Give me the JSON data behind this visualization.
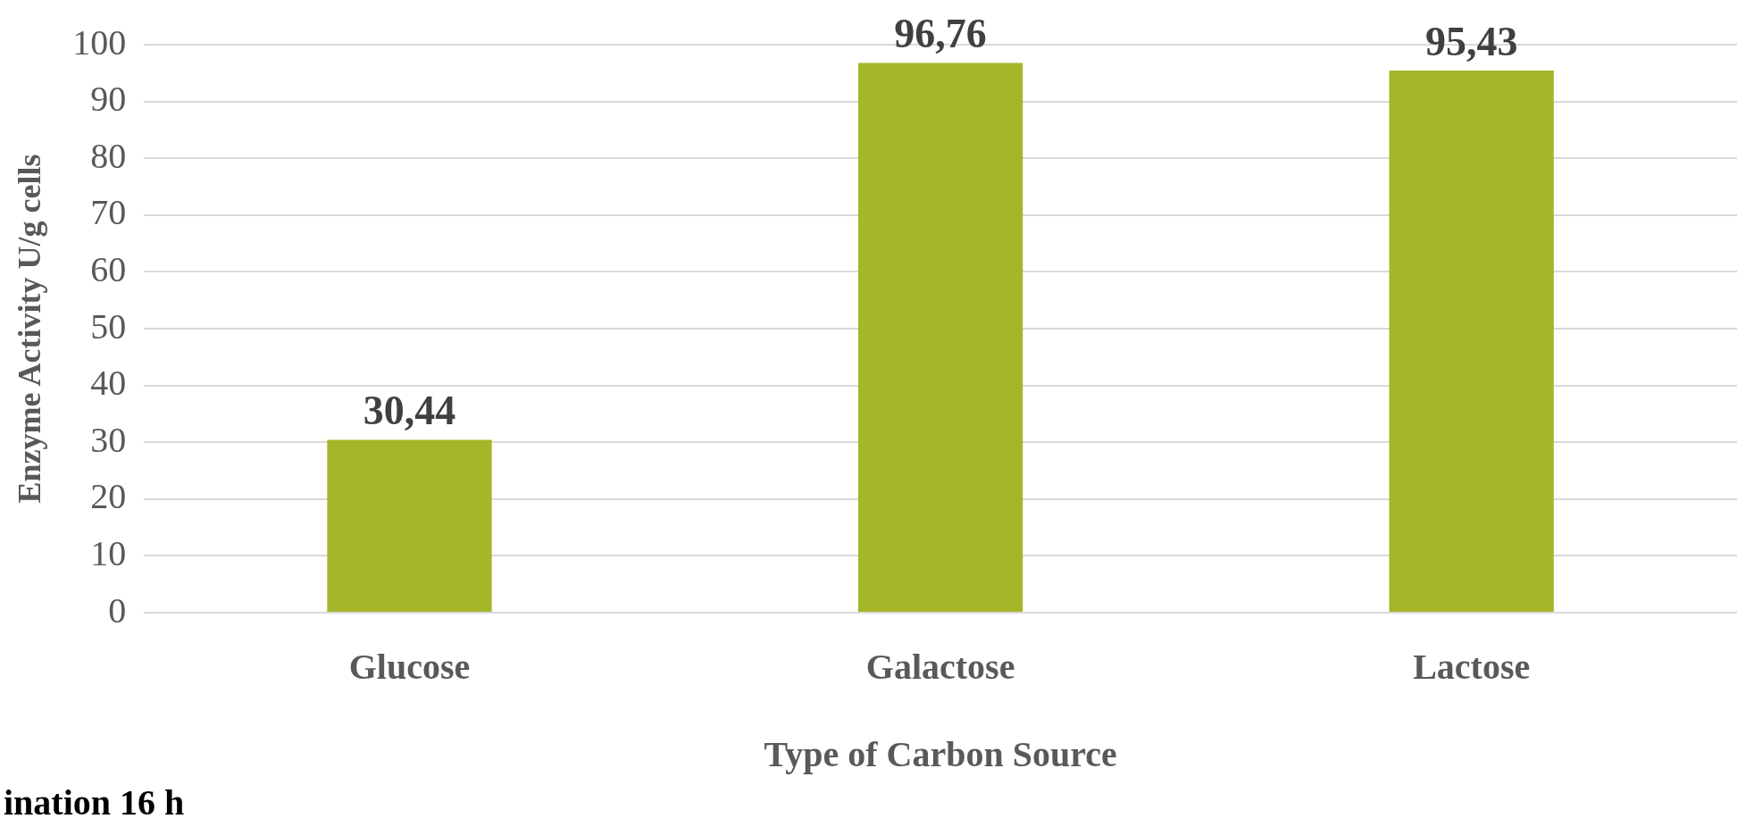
{
  "chart_data": {
    "type": "bar",
    "xlabel": "Type of Carbon Source",
    "ylabel": "Enzyme Activity U/g cells",
    "categories": [
      "Glucose",
      "Galactose",
      "Lactose"
    ],
    "values": [
      30.44,
      96.76,
      95.43
    ],
    "color": "#a5b629",
    "value_labels": [
      "30,44",
      "96,76",
      "95,43"
    ],
    "ylim": [
      0,
      100
    ],
    "yticks": [
      0,
      10,
      20,
      30,
      40,
      50,
      60,
      70,
      80,
      90,
      100
    ],
    "grid": "y",
    "legend": false,
    "annotations": [
      "ination 16 h"
    ]
  }
}
